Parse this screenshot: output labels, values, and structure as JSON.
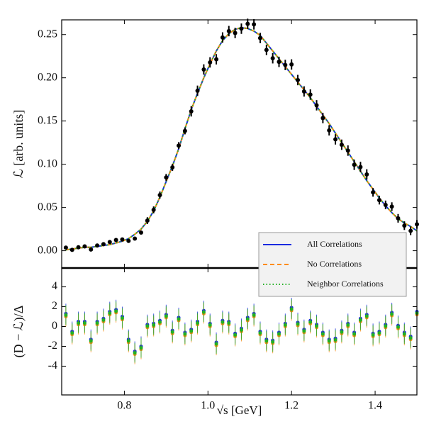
{
  "chart_data": [
    {
      "type": "line",
      "ylabel": "ℒ [arb. units]",
      "x": [
        0.66,
        0.675,
        0.69,
        0.705,
        0.72,
        0.735,
        0.75,
        0.765,
        0.78,
        0.795,
        0.81,
        0.825,
        0.84,
        0.855,
        0.87,
        0.885,
        0.9,
        0.915,
        0.93,
        0.945,
        0.96,
        0.975,
        0.99,
        1.005,
        1.02,
        1.035,
        1.05,
        1.065,
        1.08,
        1.095,
        1.11,
        1.125,
        1.14,
        1.155,
        1.17,
        1.185,
        1.2,
        1.215,
        1.23,
        1.245,
        1.26,
        1.275,
        1.29,
        1.305,
        1.32,
        1.335,
        1.35,
        1.365,
        1.38,
        1.395,
        1.41,
        1.425,
        1.44,
        1.455,
        1.47,
        1.485,
        1.5
      ],
      "series": [
        {
          "name": "All Correlations",
          "color": "#1a2be0",
          "style": "solid",
          "values": [
            0.001,
            0.002,
            0.003,
            0.004,
            0.004,
            0.005,
            0.006,
            0.007,
            0.009,
            0.011,
            0.014,
            0.019,
            0.025,
            0.034,
            0.046,
            0.062,
            0.08,
            0.098,
            0.118,
            0.141,
            0.163,
            0.182,
            0.2,
            0.216,
            0.231,
            0.243,
            0.251,
            0.256,
            0.258,
            0.257,
            0.254,
            0.249,
            0.24,
            0.231,
            0.222,
            0.213,
            0.204,
            0.195,
            0.186,
            0.177,
            0.167,
            0.157,
            0.147,
            0.136,
            0.125,
            0.114,
            0.103,
            0.092,
            0.081,
            0.071,
            0.061,
            0.052,
            0.044,
            0.037,
            0.032,
            0.028,
            0.023
          ]
        },
        {
          "name": "No Correlations",
          "color": "#ff8c1a",
          "style": "dashed",
          "values": [
            0.001,
            0.002,
            0.003,
            0.004,
            0.004,
            0.005,
            0.006,
            0.007,
            0.009,
            0.011,
            0.014,
            0.019,
            0.025,
            0.034,
            0.046,
            0.062,
            0.08,
            0.098,
            0.118,
            0.141,
            0.163,
            0.182,
            0.2,
            0.216,
            0.231,
            0.243,
            0.251,
            0.256,
            0.258,
            0.257,
            0.254,
            0.249,
            0.24,
            0.231,
            0.222,
            0.213,
            0.204,
            0.195,
            0.186,
            0.177,
            0.167,
            0.157,
            0.147,
            0.136,
            0.125,
            0.114,
            0.103,
            0.092,
            0.081,
            0.071,
            0.061,
            0.052,
            0.044,
            0.037,
            0.032,
            0.028,
            0.023
          ]
        },
        {
          "name": "Neighbor Correlations",
          "color": "#22b022",
          "style": "dotted",
          "values": [
            0.001,
            0.002,
            0.003,
            0.004,
            0.004,
            0.005,
            0.006,
            0.007,
            0.009,
            0.011,
            0.014,
            0.019,
            0.025,
            0.034,
            0.046,
            0.062,
            0.08,
            0.098,
            0.118,
            0.141,
            0.163,
            0.182,
            0.2,
            0.216,
            0.231,
            0.243,
            0.251,
            0.256,
            0.258,
            0.257,
            0.254,
            0.249,
            0.24,
            0.231,
            0.222,
            0.213,
            0.204,
            0.195,
            0.186,
            0.177,
            0.167,
            0.157,
            0.147,
            0.136,
            0.125,
            0.114,
            0.103,
            0.092,
            0.081,
            0.071,
            0.061,
            0.052,
            0.044,
            0.037,
            0.032,
            0.028,
            0.023
          ]
        }
      ],
      "data": {
        "color": "#000000",
        "values": [
          0.0036,
          0.001,
          0.004,
          0.005,
          0.0014,
          0.006,
          0.0076,
          0.01,
          0.0124,
          0.013,
          0.0114,
          0.014,
          0.021,
          0.0348,
          0.0472,
          0.0644,
          0.0848,
          0.0964,
          0.1216,
          0.1386,
          0.1612,
          0.185,
          0.2096,
          0.2178,
          0.2214,
          0.2466,
          0.254,
          0.2518,
          0.2568,
          0.2624,
          0.2618,
          0.246,
          0.2322,
          0.2226,
          0.2184,
          0.2148,
          0.2154,
          0.1974,
          0.1842,
          0.1806,
          0.1682,
          0.1534,
          0.1392,
          0.1288,
          0.1226,
          0.1158,
          0.0994,
          0.0968,
          0.0882,
          0.0675,
          0.0585,
          0.053,
          0.051,
          0.0375,
          0.029,
          0.023,
          0.0305
        ],
        "errors": [
          0.002,
          0.002,
          0.002,
          0.002,
          0.002,
          0.002,
          0.002,
          0.002,
          0.002,
          0.002,
          0.002,
          0.002,
          0.002,
          0.004,
          0.004,
          0.004,
          0.004,
          0.004,
          0.004,
          0.004,
          0.006,
          0.006,
          0.006,
          0.006,
          0.006,
          0.006,
          0.006,
          0.006,
          0.006,
          0.006,
          0.006,
          0.006,
          0.006,
          0.006,
          0.006,
          0.006,
          0.006,
          0.006,
          0.006,
          0.006,
          0.006,
          0.006,
          0.006,
          0.006,
          0.006,
          0.006,
          0.006,
          0.006,
          0.006,
          0.005,
          0.005,
          0.005,
          0.005,
          0.005,
          0.005,
          0.005,
          0.005
        ]
      },
      "xlim": [
        0.65,
        1.5
      ],
      "ylim": [
        -0.02,
        0.267
      ],
      "xticks": [
        0.8,
        1,
        1.2,
        1.4
      ],
      "yticks": [
        {
          "value": 0,
          "label": "0.00"
        },
        0.05,
        {
          "value": 0.1,
          "label": "0.10"
        },
        0.15,
        {
          "value": 0.2,
          "label": "0.20"
        },
        0.25
      ],
      "legend": "lower right"
    },
    {
      "type": "scatter",
      "xlabel": "√s [GeV]",
      "ylabel": "(D − ℒ)/Δ",
      "x": [
        0.66,
        0.675,
        0.69,
        0.705,
        0.72,
        0.735,
        0.75,
        0.765,
        0.78,
        0.795,
        0.81,
        0.825,
        0.84,
        0.855,
        0.87,
        0.885,
        0.9,
        0.915,
        0.93,
        0.945,
        0.96,
        0.975,
        0.99,
        1.005,
        1.02,
        1.035,
        1.05,
        1.065,
        1.08,
        1.095,
        1.11,
        1.125,
        1.14,
        1.155,
        1.17,
        1.185,
        1.2,
        1.215,
        1.23,
        1.245,
        1.26,
        1.275,
        1.29,
        1.305,
        1.32,
        1.335,
        1.35,
        1.365,
        1.38,
        1.395,
        1.41,
        1.425,
        1.44,
        1.455,
        1.47,
        1.485,
        1.5
      ],
      "yerr": 1,
      "series": [
        {
          "color": "#1a2be0",
          "values": [
            1.3,
            -0.5,
            0.5,
            0.5,
            -1.3,
            0.5,
            0.8,
            1.5,
            1.7,
            1.0,
            -1.3,
            -2.5,
            -2.0,
            0.2,
            0.3,
            0.6,
            1.2,
            -0.4,
            0.9,
            -0.6,
            -0.3,
            0.5,
            1.6,
            0.3,
            -1.6,
            0.6,
            0.5,
            -0.7,
            -0.2,
            0.9,
            1.3,
            -0.5,
            -1.3,
            -1.4,
            -0.6,
            0.3,
            1.9,
            0.4,
            -0.3,
            0.6,
            0.2,
            -0.6,
            -1.3,
            -1.2,
            -0.4,
            0.3,
            -0.6,
            0.8,
            1.2,
            -0.7,
            -0.5,
            0.2,
            1.4,
            0.1,
            -0.6,
            -1.0,
            1.5
          ]
        },
        {
          "color": "#ff8c1a",
          "values": [
            1.0,
            -0.8,
            0.2,
            0.2,
            -1.6,
            0.2,
            0.5,
            1.2,
            1.4,
            0.7,
            -1.6,
            -2.8,
            -2.3,
            -0.1,
            0.0,
            0.3,
            0.9,
            -0.7,
            0.6,
            -0.9,
            -0.6,
            0.2,
            1.3,
            0.0,
            -1.9,
            0.3,
            0.2,
            -1.0,
            -0.5,
            0.6,
            1.0,
            -0.8,
            -1.6,
            -1.7,
            -0.9,
            0.0,
            1.6,
            0.1,
            -0.6,
            0.3,
            -0.1,
            -0.9,
            -1.6,
            -1.5,
            -0.7,
            0.0,
            -0.9,
            0.5,
            0.9,
            -1.0,
            -0.8,
            -0.1,
            1.1,
            -0.2,
            -0.9,
            -1.3,
            1.2
          ]
        },
        {
          "color": "#22b022",
          "values": [
            1.15,
            -0.65,
            0.35,
            0.35,
            -1.45,
            0.35,
            0.65,
            1.35,
            1.55,
            0.85,
            -1.45,
            -2.65,
            -2.15,
            0.05,
            0.15,
            0.45,
            1.05,
            -0.55,
            0.75,
            -0.75,
            -0.45,
            0.35,
            1.45,
            0.15,
            -1.75,
            0.45,
            0.35,
            -0.85,
            -0.35,
            0.75,
            1.15,
            -0.65,
            -1.45,
            -1.55,
            -0.75,
            0.15,
            1.75,
            0.25,
            -0.45,
            0.45,
            0.05,
            -0.75,
            -1.45,
            -1.35,
            -0.55,
            0.15,
            -0.75,
            0.65,
            1.05,
            -0.85,
            -0.65,
            0.05,
            1.25,
            -0.05,
            -0.75,
            -1.15,
            1.35
          ]
        }
      ],
      "xlim": [
        0.65,
        1.5
      ],
      "ylim": [
        -6.9,
        5.9
      ],
      "xticks": [
        0.8,
        {
          "value": 1,
          "label": "1.0"
        },
        1.2,
        1.4
      ],
      "yticks": [
        -4,
        -2,
        0,
        2,
        4
      ]
    }
  ]
}
